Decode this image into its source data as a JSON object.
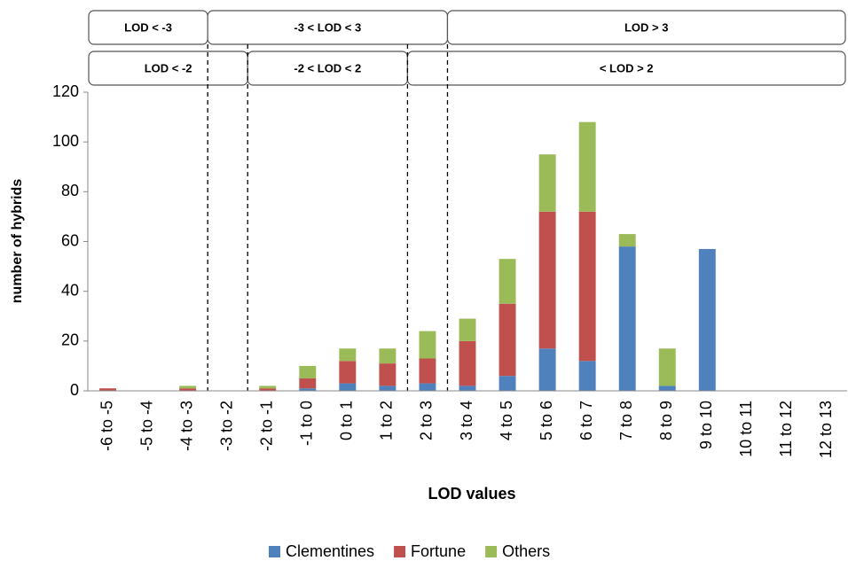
{
  "chart_data": {
    "type": "stacked_bar",
    "x_label": "LOD values",
    "y_label": "number of hybrids",
    "categories": [
      "-6 to -5",
      "-5 to -4",
      "-4 to -3",
      "-3 to -2",
      "-2 to -1",
      "-1 to 0",
      "0 to 1",
      "1 to 2",
      "2 to 3",
      "3 to 4",
      "4 to 5",
      "5 to 6",
      "6 to 7",
      "7 to 8",
      "8 to 9",
      "9 to 10",
      "10 to 11",
      "11 to 12",
      "12 to 13"
    ],
    "series": [
      {
        "name": "Clementines",
        "color": "#4f81bd",
        "values": [
          0,
          0,
          0,
          0,
          0,
          1,
          3,
          2,
          3,
          2,
          6,
          17,
          12,
          58,
          2,
          57,
          0,
          0,
          0
        ]
      },
      {
        "name": "Fortune",
        "color": "#c0504d",
        "values": [
          1,
          0,
          1,
          0,
          1,
          4,
          9,
          9,
          10,
          18,
          29,
          55,
          60,
          0,
          0,
          0,
          0,
          0,
          0
        ]
      },
      {
        "name": "Others",
        "color": "#9bbb59",
        "values": [
          0,
          0,
          1,
          0,
          1,
          5,
          5,
          6,
          11,
          9,
          18,
          23,
          36,
          5,
          15,
          0,
          0,
          0,
          0
        ]
      }
    ],
    "ylim": [
      0,
      120
    ],
    "yticks": [
      0,
      20,
      40,
      60,
      80,
      100,
      120
    ],
    "legend": "bottom",
    "annotations": [
      [
        "LOD < -3",
        "-3 < LOD < 3",
        "LOD > 3"
      ],
      [
        "LOD < -2",
        "-2 < LOD < 2",
        "< LOD > 2"
      ]
    ]
  }
}
